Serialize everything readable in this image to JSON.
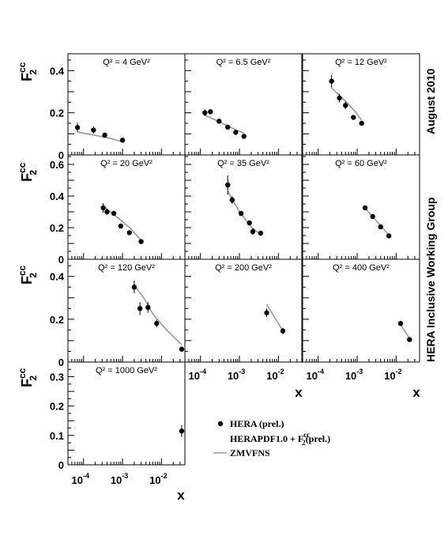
{
  "figure": {
    "side_text_top": "August 2010",
    "side_text_bottom": "HERA Inclusive Working Group",
    "ylabel_main": "F",
    "ylabel_sup": "cc",
    "ylabel_sub": "2",
    "xlabel": "x",
    "legend": {
      "data_label": "HERA (prel.)",
      "fit_label_main": "HERAPDF1.0 + F",
      "fit_label_sup": "cc",
      "fit_label_sub": "2",
      "fit_label_tail": "(prel.)",
      "curve_label": "ZMVFNS"
    },
    "x_tick_labels": [
      {
        "base": "10",
        "exp": "-4"
      },
      {
        "base": "10",
        "exp": "-3"
      },
      {
        "base": "10",
        "exp": "-2"
      }
    ]
  },
  "chart_data": [
    {
      "type": "scatter",
      "title": "Q² =  4 GeV²",
      "q2": "4",
      "ylim": [
        0,
        0.48
      ],
      "yticks": [
        {
          "v": 0,
          "t": "0"
        },
        {
          "v": 0.2,
          "t": "0.2"
        },
        {
          "v": 0.4,
          "t": "0.4"
        }
      ],
      "xlim_log10": [
        -4.4,
        -1.4
      ],
      "points": [
        [
          7e-05,
          0.13,
          0.022
        ],
        [
          0.00018,
          0.118,
          0.016
        ],
        [
          0.00035,
          0.094,
          0.01
        ],
        [
          0.001,
          0.07,
          0.008
        ]
      ],
      "curve": [
        [
          7e-05,
          0.108
        ],
        [
          0.0002,
          0.093
        ],
        [
          0.0005,
          0.078
        ],
        [
          0.001,
          0.062
        ]
      ]
    },
    {
      "type": "scatter",
      "title": "Q² = 6.5 GeV²",
      "q2": "6.5",
      "ylim": [
        0,
        0.48
      ],
      "yticks": [],
      "xlim_log10": [
        -4.4,
        -1.4
      ],
      "points": [
        [
          0.00013,
          0.2,
          0.015
        ],
        [
          0.00018,
          0.205,
          0.012
        ],
        [
          0.0003,
          0.16,
          0.009
        ],
        [
          0.0005,
          0.132,
          0.008
        ],
        [
          0.0008,
          0.107,
          0.007
        ],
        [
          0.0013,
          0.088,
          0.006
        ]
      ],
      "curve": [
        [
          0.00013,
          0.188
        ],
        [
          0.0003,
          0.158
        ],
        [
          0.0006,
          0.13
        ],
        [
          0.0013,
          0.103
        ]
      ]
    },
    {
      "type": "scatter",
      "title": "Q² = 12 GeV²",
      "q2": "12",
      "ylim": [
        0,
        0.48
      ],
      "yticks": [],
      "xlim_log10": [
        -4.4,
        -1.4
      ],
      "points": [
        [
          0.00022,
          0.35,
          0.03
        ],
        [
          0.00035,
          0.27,
          0.02
        ],
        [
          0.0005,
          0.235,
          0.018
        ],
        [
          0.0008,
          0.178,
          0.008
        ],
        [
          0.0013,
          0.15,
          0.007
        ]
      ],
      "curve": [
        [
          0.00022,
          0.318
        ],
        [
          0.0005,
          0.255
        ],
        [
          0.0009,
          0.205
        ],
        [
          0.0013,
          0.165
        ]
      ]
    },
    {
      "type": "scatter",
      "title": "Q² = 20 GeV²",
      "q2": "20",
      "ylim": [
        0,
        0.66
      ],
      "yticks": [
        {
          "v": 0,
          "t": "0"
        },
        {
          "v": 0.2,
          "t": "0.2"
        },
        {
          "v": 0.4,
          "t": "0.4"
        },
        {
          "v": 0.6,
          "t": "0.6"
        }
      ],
      "xlim_log10": [
        -4.4,
        -1.4
      ],
      "points": [
        [
          0.00032,
          0.325,
          0.03
        ],
        [
          0.0004,
          0.3,
          0.02
        ],
        [
          0.0006,
          0.29,
          0.015
        ],
        [
          0.0009,
          0.21,
          0.01
        ],
        [
          0.0015,
          0.168,
          0.008
        ],
        [
          0.003,
          0.112,
          0.008
        ]
      ],
      "curve": [
        [
          0.00032,
          0.335
        ],
        [
          0.0008,
          0.258
        ],
        [
          0.0016,
          0.195
        ],
        [
          0.003,
          0.118
        ]
      ]
    },
    {
      "type": "scatter",
      "title": "Q² = 35 GeV²",
      "q2": "35",
      "ylim": [
        0,
        0.66
      ],
      "yticks": [],
      "xlim_log10": [
        -4.4,
        -1.4
      ],
      "points": [
        [
          0.0005,
          0.47,
          0.06
        ],
        [
          0.00065,
          0.375,
          0.025
        ],
        [
          0.0011,
          0.29,
          0.015
        ],
        [
          0.0018,
          0.23,
          0.01
        ],
        [
          0.0022,
          0.175,
          0.02
        ],
        [
          0.0035,
          0.165,
          0.01
        ]
      ],
      "curve": [
        [
          0.0005,
          0.43
        ],
        [
          0.001,
          0.3
        ],
        [
          0.002,
          0.205
        ],
        [
          0.0035,
          0.155
        ]
      ]
    },
    {
      "type": "scatter",
      "title": "Q² = 60 GeV²",
      "q2": "60",
      "ylim": [
        0,
        0.66
      ],
      "yticks": [],
      "xlim_log10": [
        -4.4,
        -1.4
      ],
      "points": [
        [
          0.0016,
          0.325,
          0.015
        ],
        [
          0.0025,
          0.27,
          0.012
        ],
        [
          0.004,
          0.205,
          0.01
        ],
        [
          0.0065,
          0.148,
          0.008
        ]
      ],
      "curve": [
        [
          0.0016,
          0.322
        ],
        [
          0.003,
          0.248
        ],
        [
          0.0065,
          0.152
        ]
      ]
    },
    {
      "type": "scatter",
      "title": "Q² = 120 GeV²",
      "q2": "120",
      "ylim": [
        0,
        0.48
      ],
      "yticks": [
        {
          "v": 0,
          "t": "0"
        },
        {
          "v": 0.2,
          "t": "0.2"
        },
        {
          "v": 0.4,
          "t": "0.4"
        }
      ],
      "xlim_log10": [
        -4.4,
        -1.4
      ],
      "points": [
        [
          0.002,
          0.35,
          0.03
        ],
        [
          0.0028,
          0.25,
          0.03
        ],
        [
          0.0045,
          0.255,
          0.025
        ],
        [
          0.0075,
          0.18,
          0.018
        ],
        [
          0.033,
          0.06,
          0.01
        ]
      ],
      "curve": [
        [
          0.002,
          0.358
        ],
        [
          0.0035,
          0.3
        ],
        [
          0.006,
          0.225
        ],
        [
          0.012,
          0.16
        ],
        [
          0.033,
          0.08
        ]
      ]
    },
    {
      "type": "scatter",
      "title": "Q² = 200 GeV²",
      "q2": "200",
      "ylim": [
        0,
        0.48
      ],
      "yticks": [],
      "xlim_log10": [
        -4.4,
        -1.4
      ],
      "points": [
        [
          0.005,
          0.23,
          0.02
        ],
        [
          0.013,
          0.145,
          0.015
        ]
      ],
      "curve": [
        [
          0.005,
          0.27
        ],
        [
          0.013,
          0.145
        ]
      ]
    },
    {
      "type": "scatter",
      "title": "Q² = 400 GeV²",
      "q2": "400",
      "ylim": [
        0,
        0.48
      ],
      "yticks": [],
      "xlim_log10": [
        -4.4,
        -1.4
      ],
      "points": [
        [
          0.013,
          0.18,
          0.01
        ],
        [
          0.022,
          0.105,
          0.008
        ]
      ],
      "curve": [
        [
          0.012,
          0.185
        ],
        [
          0.022,
          0.11
        ]
      ]
    },
    {
      "type": "scatter",
      "title": "Q² = 1000 GeV²",
      "q2": "1000",
      "ylim": [
        0,
        0.35
      ],
      "yticks": [
        {
          "v": 0,
          "t": "0"
        },
        {
          "v": 0.1,
          "t": "0.1"
        },
        {
          "v": 0.2,
          "t": "0.2"
        },
        {
          "v": 0.3,
          "t": "0.3"
        }
      ],
      "xlim_log10": [
        -4.4,
        -1.4
      ],
      "points": [
        [
          0.033,
          0.115,
          0.02
        ]
      ],
      "curve": []
    }
  ]
}
